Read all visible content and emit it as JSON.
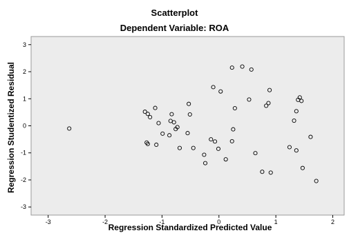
{
  "chart_data": {
    "type": "scatter",
    "title": "Scatterplot",
    "subtitle": "Dependent Variable: ROA",
    "xlabel": "Regression Standardized Predicted Value",
    "ylabel": "Regression Studentized Residual",
    "xlim": [
      -3.3,
      2.2
    ],
    "ylim": [
      -3.3,
      3.3
    ],
    "xticks": [
      "-3",
      "-2",
      "-1",
      "0",
      "1",
      "2"
    ],
    "yticks": [
      "3",
      "2",
      "1",
      "0",
      "-1",
      "-2",
      "-3"
    ],
    "colors": {
      "background": "#ececec",
      "marker": "#000000"
    },
    "points": [
      {
        "x": -2.63,
        "y": -0.1
      },
      {
        "x": -1.3,
        "y": 0.52
      },
      {
        "x": -1.25,
        "y": 0.44
      },
      {
        "x": -1.21,
        "y": 0.32
      },
      {
        "x": -1.27,
        "y": -0.62
      },
      {
        "x": -1.25,
        "y": -0.67
      },
      {
        "x": -1.1,
        "y": -0.7
      },
      {
        "x": -1.12,
        "y": 0.66
      },
      {
        "x": -1.06,
        "y": 0.1
      },
      {
        "x": -0.99,
        "y": -0.29
      },
      {
        "x": -0.85,
        "y": 0.18
      },
      {
        "x": -0.87,
        "y": -0.35
      },
      {
        "x": -0.83,
        "y": 0.43
      },
      {
        "x": -0.79,
        "y": 0.13
      },
      {
        "x": -0.76,
        "y": -0.12
      },
      {
        "x": -0.73,
        "y": -0.05
      },
      {
        "x": -0.69,
        "y": -0.82
      },
      {
        "x": -0.53,
        "y": 0.81
      },
      {
        "x": -0.51,
        "y": 0.42
      },
      {
        "x": -0.55,
        "y": -0.27
      },
      {
        "x": -0.45,
        "y": -0.82
      },
      {
        "x": -0.26,
        "y": -1.07
      },
      {
        "x": -0.24,
        "y": -1.38
      },
      {
        "x": -0.14,
        "y": -0.5
      },
      {
        "x": -0.07,
        "y": -0.58
      },
      {
        "x": -0.1,
        "y": 1.43
      },
      {
        "x": 0.03,
        "y": 1.27
      },
      {
        "x": -0.01,
        "y": -0.85
      },
      {
        "x": 0.12,
        "y": -1.24
      },
      {
        "x": 0.23,
        "y": 2.15
      },
      {
        "x": 0.41,
        "y": 2.19
      },
      {
        "x": 0.57,
        "y": 2.08
      },
      {
        "x": 0.53,
        "y": 0.97
      },
      {
        "x": 0.28,
        "y": 0.65
      },
      {
        "x": 0.25,
        "y": -0.13
      },
      {
        "x": 0.23,
        "y": -0.57
      },
      {
        "x": 0.64,
        "y": -1.01
      },
      {
        "x": 0.76,
        "y": -1.7
      },
      {
        "x": 0.91,
        "y": -1.73
      },
      {
        "x": 0.89,
        "y": 1.32
      },
      {
        "x": 0.87,
        "y": 0.84
      },
      {
        "x": 0.83,
        "y": 0.74
      },
      {
        "x": 1.24,
        "y": -0.79
      },
      {
        "x": 1.36,
        "y": -0.91
      },
      {
        "x": 1.32,
        "y": 0.19
      },
      {
        "x": 1.36,
        "y": 0.54
      },
      {
        "x": 1.39,
        "y": 0.96
      },
      {
        "x": 1.42,
        "y": 1.05
      },
      {
        "x": 1.45,
        "y": 0.92
      },
      {
        "x": 1.47,
        "y": -1.56
      },
      {
        "x": 1.61,
        "y": -0.41
      },
      {
        "x": 1.71,
        "y": -2.04
      }
    ]
  }
}
